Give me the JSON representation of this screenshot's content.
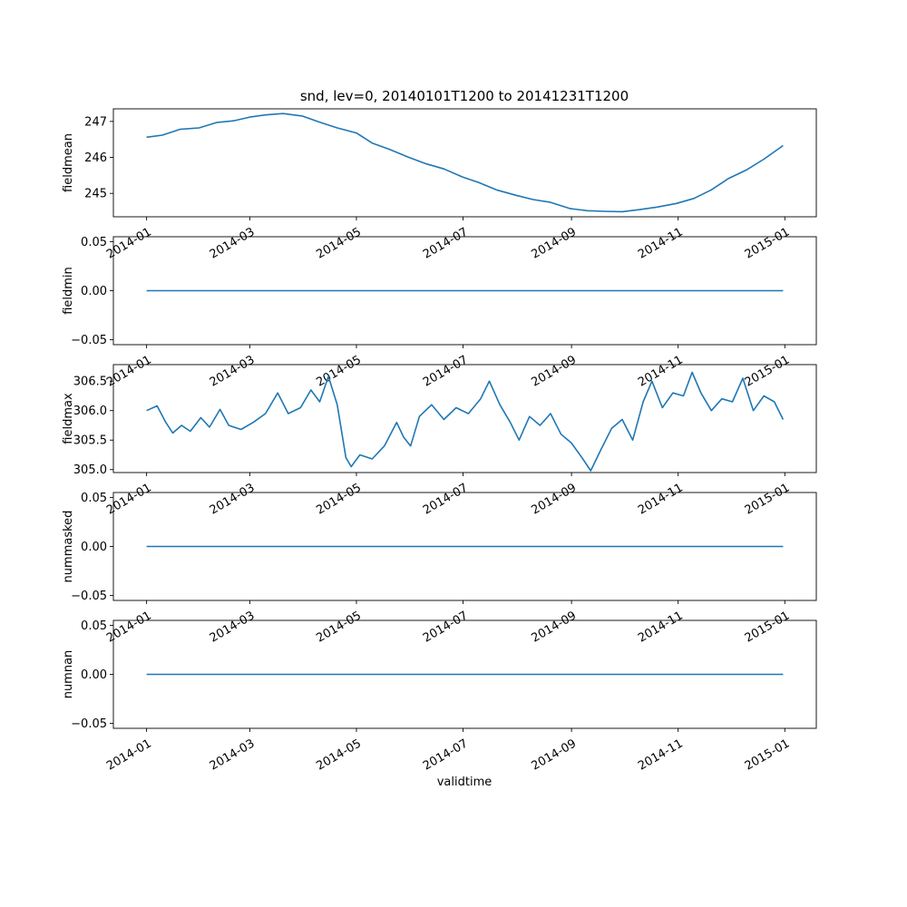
{
  "figure": {
    "title": "snd, lev=0, 20140101T1200 to 20141231T1200",
    "xlabel": "validtime",
    "line_color": "#1f77b4"
  },
  "chart_data": [
    {
      "type": "line",
      "ylabel": "fieldmean",
      "xlim": [
        "2013-12-13",
        "2015-01-19"
      ],
      "ylim": [
        244.35,
        247.35
      ],
      "xticks": [
        "2014-01",
        "2014-03",
        "2014-05",
        "2014-07",
        "2014-09",
        "2014-11",
        "2015-01"
      ],
      "yticks": [
        "245",
        "246",
        "247"
      ],
      "points": [
        [
          "2014-01-01",
          246.56
        ],
        [
          "2014-01-10",
          246.62
        ],
        [
          "2014-01-20",
          246.78
        ],
        [
          "2014-01-31",
          246.82
        ],
        [
          "2014-02-10",
          246.97
        ],
        [
          "2014-02-20",
          247.02
        ],
        [
          "2014-03-01",
          247.12
        ],
        [
          "2014-03-10",
          247.18
        ],
        [
          "2014-03-20",
          247.22
        ],
        [
          "2014-03-31",
          247.15
        ],
        [
          "2014-04-10",
          246.98
        ],
        [
          "2014-04-20",
          246.82
        ],
        [
          "2014-05-01",
          246.68
        ],
        [
          "2014-05-10",
          246.4
        ],
        [
          "2014-05-20",
          246.22
        ],
        [
          "2014-05-31",
          246.0
        ],
        [
          "2014-06-10",
          245.82
        ],
        [
          "2014-06-20",
          245.68
        ],
        [
          "2014-07-01",
          245.45
        ],
        [
          "2014-07-10",
          245.3
        ],
        [
          "2014-07-20",
          245.1
        ],
        [
          "2014-07-31",
          244.95
        ],
        [
          "2014-08-10",
          244.83
        ],
        [
          "2014-08-20",
          244.75
        ],
        [
          "2014-08-31",
          244.58
        ],
        [
          "2014-09-10",
          244.52
        ],
        [
          "2014-09-20",
          244.5
        ],
        [
          "2014-09-30",
          244.49
        ],
        [
          "2014-10-10",
          244.55
        ],
        [
          "2014-10-20",
          244.62
        ],
        [
          "2014-10-31",
          244.72
        ],
        [
          "2014-11-10",
          244.86
        ],
        [
          "2014-11-20",
          245.1
        ],
        [
          "2014-11-30",
          245.42
        ],
        [
          "2014-12-10",
          245.65
        ],
        [
          "2014-12-20",
          245.95
        ],
        [
          "2014-12-31",
          246.33
        ]
      ]
    },
    {
      "type": "line",
      "ylabel": "fieldmin",
      "xlim": [
        "2013-12-13",
        "2015-01-19"
      ],
      "ylim": [
        -0.055,
        0.055
      ],
      "xticks": [
        "2014-01",
        "2014-03",
        "2014-05",
        "2014-07",
        "2014-09",
        "2014-11",
        "2015-01"
      ],
      "yticks": [
        "−0.05",
        "0.00",
        "0.05"
      ],
      "points": [
        [
          "2014-01-01",
          0.0
        ],
        [
          "2014-12-31",
          0.0
        ]
      ]
    },
    {
      "type": "line",
      "ylabel": "fieldmax",
      "xlim": [
        "2013-12-13",
        "2015-01-19"
      ],
      "ylim": [
        304.95,
        306.78
      ],
      "xticks": [
        "2014-01",
        "2014-03",
        "2014-05",
        "2014-07",
        "2014-09",
        "2014-11",
        "2015-01"
      ],
      "yticks": [
        "305.0",
        "305.5",
        "306.0",
        "306.5"
      ],
      "points": [
        [
          "2014-01-01",
          306.0
        ],
        [
          "2014-01-07",
          306.08
        ],
        [
          "2014-01-12",
          305.8
        ],
        [
          "2014-01-16",
          305.62
        ],
        [
          "2014-01-21",
          305.75
        ],
        [
          "2014-01-26",
          305.65
        ],
        [
          "2014-02-01",
          305.88
        ],
        [
          "2014-02-06",
          305.72
        ],
        [
          "2014-02-12",
          306.02
        ],
        [
          "2014-02-17",
          305.75
        ],
        [
          "2014-02-24",
          305.68
        ],
        [
          "2014-03-03",
          305.8
        ],
        [
          "2014-03-10",
          305.95
        ],
        [
          "2014-03-17",
          306.3
        ],
        [
          "2014-03-23",
          305.95
        ],
        [
          "2014-03-30",
          306.05
        ],
        [
          "2014-04-05",
          306.35
        ],
        [
          "2014-04-10",
          306.15
        ],
        [
          "2014-04-15",
          306.58
        ],
        [
          "2014-04-20",
          306.1
        ],
        [
          "2014-04-25",
          305.2
        ],
        [
          "2014-04-28",
          305.05
        ],
        [
          "2014-05-03",
          305.25
        ],
        [
          "2014-05-10",
          305.18
        ],
        [
          "2014-05-17",
          305.4
        ],
        [
          "2014-05-24",
          305.8
        ],
        [
          "2014-05-28",
          305.55
        ],
        [
          "2014-06-01",
          305.4
        ],
        [
          "2014-06-06",
          305.9
        ],
        [
          "2014-06-13",
          306.1
        ],
        [
          "2014-06-20",
          305.85
        ],
        [
          "2014-06-27",
          306.05
        ],
        [
          "2014-07-04",
          305.95
        ],
        [
          "2014-07-11",
          306.2
        ],
        [
          "2014-07-16",
          306.5
        ],
        [
          "2014-07-22",
          306.1
        ],
        [
          "2014-07-28",
          305.8
        ],
        [
          "2014-08-02",
          305.5
        ],
        [
          "2014-08-08",
          305.9
        ],
        [
          "2014-08-14",
          305.75
        ],
        [
          "2014-08-20",
          305.95
        ],
        [
          "2014-08-26",
          305.6
        ],
        [
          "2014-09-01",
          305.45
        ],
        [
          "2014-09-07",
          305.2
        ],
        [
          "2014-09-12",
          304.98
        ],
        [
          "2014-09-18",
          305.35
        ],
        [
          "2014-09-24",
          305.7
        ],
        [
          "2014-09-30",
          305.85
        ],
        [
          "2014-10-06",
          305.5
        ],
        [
          "2014-10-12",
          306.15
        ],
        [
          "2014-10-17",
          306.5
        ],
        [
          "2014-10-23",
          306.05
        ],
        [
          "2014-10-29",
          306.3
        ],
        [
          "2014-11-04",
          306.25
        ],
        [
          "2014-11-09",
          306.65
        ],
        [
          "2014-11-14",
          306.3
        ],
        [
          "2014-11-20",
          306.0
        ],
        [
          "2014-11-26",
          306.2
        ],
        [
          "2014-12-02",
          306.15
        ],
        [
          "2014-12-08",
          306.55
        ],
        [
          "2014-12-14",
          306.0
        ],
        [
          "2014-12-20",
          306.25
        ],
        [
          "2014-12-26",
          306.15
        ],
        [
          "2014-12-31",
          305.85
        ]
      ]
    },
    {
      "type": "line",
      "ylabel": "nummasked",
      "xlim": [
        "2013-12-13",
        "2015-01-19"
      ],
      "ylim": [
        -0.055,
        0.055
      ],
      "xticks": [
        "2014-01",
        "2014-03",
        "2014-05",
        "2014-07",
        "2014-09",
        "2014-11",
        "2015-01"
      ],
      "yticks": [
        "−0.05",
        "0.00",
        "0.05"
      ],
      "points": [
        [
          "2014-01-01",
          0.0
        ],
        [
          "2014-12-31",
          0.0
        ]
      ]
    },
    {
      "type": "line",
      "ylabel": "numnan",
      "xlim": [
        "2013-12-13",
        "2015-01-19"
      ],
      "ylim": [
        -0.055,
        0.055
      ],
      "xticks": [
        "2014-01",
        "2014-03",
        "2014-05",
        "2014-07",
        "2014-09",
        "2014-11",
        "2015-01"
      ],
      "yticks": [
        "−0.05",
        "0.00",
        "0.05"
      ],
      "points": [
        [
          "2014-01-01",
          0.0
        ],
        [
          "2014-12-31",
          0.0
        ]
      ]
    }
  ]
}
